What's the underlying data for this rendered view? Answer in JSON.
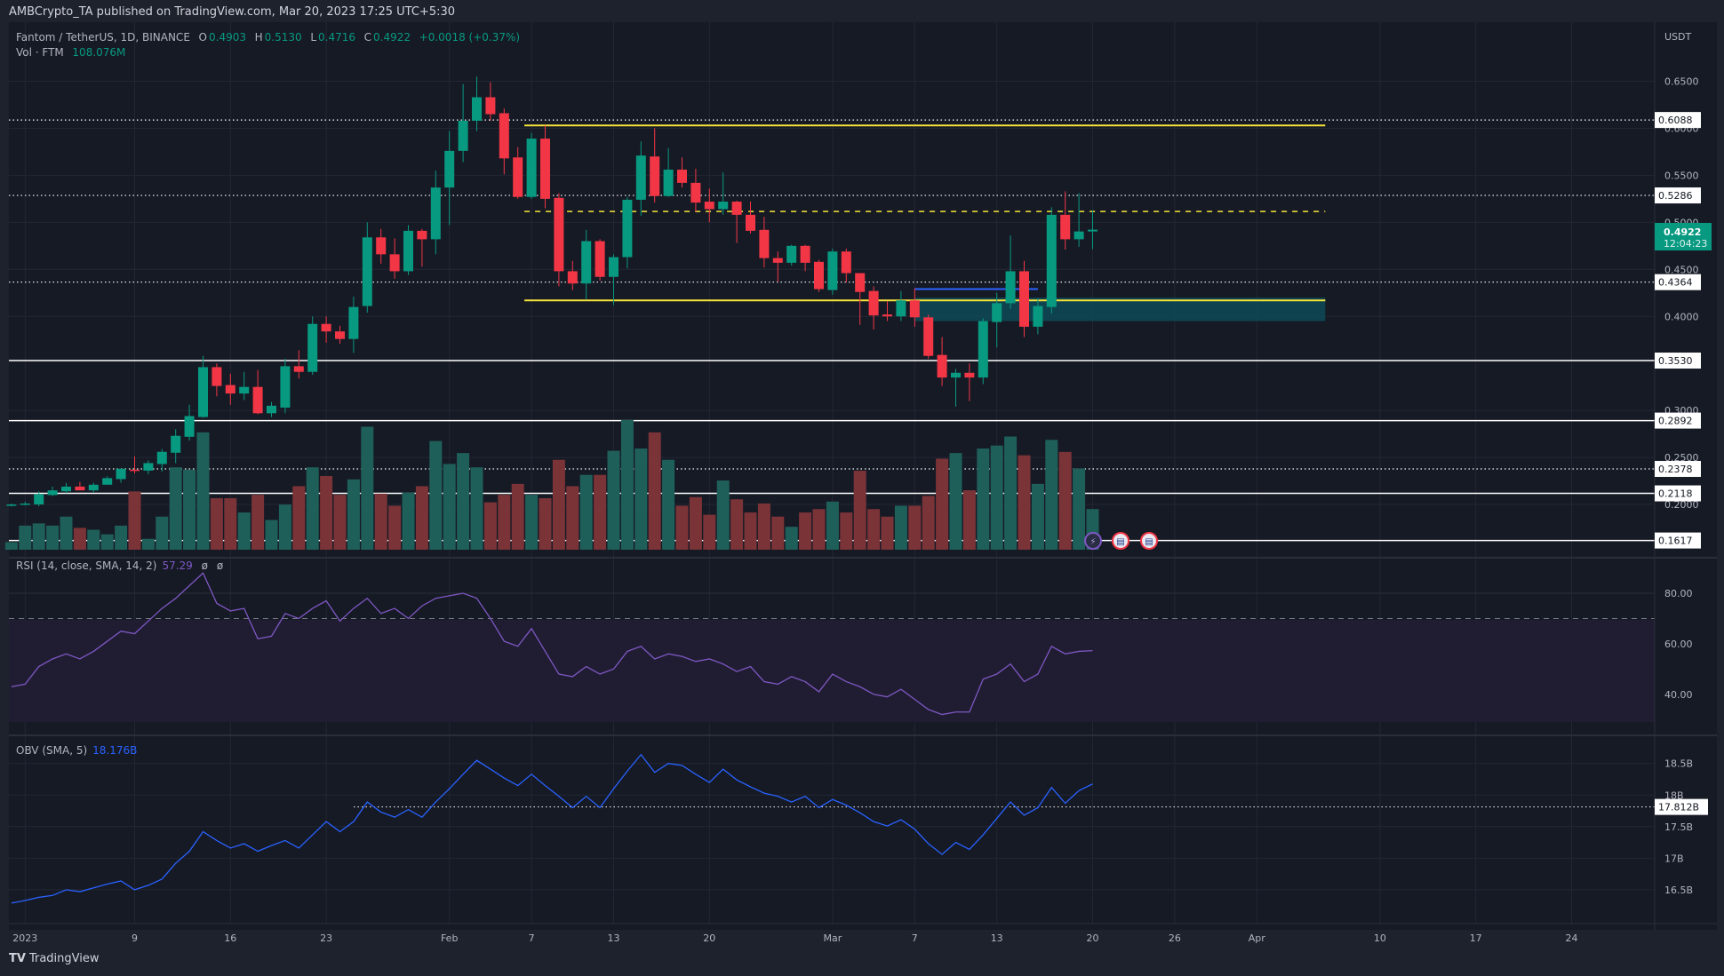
{
  "header": {
    "published": "AMBCrypto_TA published on TradingView.com, Mar 20, 2023 17:25 UTC+5:30"
  },
  "legend": {
    "symbol": "Fantom / TetherUS, 1D, BINANCE",
    "o_label": "O",
    "o": "0.4903",
    "h_label": "H",
    "h": "0.5130",
    "l_label": "L",
    "l": "0.4716",
    "c_label": "C",
    "c": "0.4922",
    "change": "+0.0018 (+0.37%)",
    "vol_label": "Vol · FTM",
    "vol": "108.076M"
  },
  "price_axis": {
    "currency": "USDT",
    "ticks": [
      "0.6500",
      "0.6000",
      "0.5500",
      "0.5000",
      "0.4500",
      "0.4000",
      "0.3000",
      "0.2500",
      "0.2000"
    ],
    "current_price": "0.4922",
    "countdown": "12:04:23"
  },
  "levels": [
    {
      "value": "0.6088",
      "style": "dotted"
    },
    {
      "value": "0.5286",
      "style": "dotted"
    },
    {
      "value": "0.4364",
      "style": "dotted"
    },
    {
      "value": "0.3530",
      "style": "solid"
    },
    {
      "value": "0.2892",
      "style": "solid"
    },
    {
      "value": "0.2378",
      "style": "dotted"
    },
    {
      "value": "0.2118",
      "style": "solid"
    },
    {
      "value": "0.1617",
      "style": "solid"
    }
  ],
  "drawings": {
    "range_high": 0.603,
    "range_mid": 0.5115,
    "range_low": 0.417,
    "range_start_day": 37,
    "range_end_day": 95,
    "zone_top": 0.42,
    "zone_bottom": 0.395,
    "zone_start_day": 65,
    "blue_line": 0.429,
    "blue_line_end_day": 74
  },
  "colors": {
    "up": "#089981",
    "down": "#f23645",
    "vol_up": "#1f5f5a",
    "vol_down": "#7a3337",
    "rsi": "#7e57c2",
    "obv": "#2962ff",
    "yellow": "#f5e33b",
    "zone": "#0d4a56",
    "background": "#161a25"
  },
  "rsi": {
    "label": "RSI (14, close, SMA, 14, 2)",
    "value": "57.29",
    "extra1": "ø",
    "extra2": "ø",
    "ticks": [
      "80.00",
      "60.00",
      "40.00"
    ],
    "upper_band": 70,
    "lower_band": 30,
    "mid": 50
  },
  "obv": {
    "label": "OBV (SMA, 5)",
    "value": "18.176B",
    "ticks": [
      "18.5B",
      "18B",
      "17.5B",
      "17B",
      "16.5B"
    ],
    "marker": "17.812B"
  },
  "time_axis": {
    "labels": [
      {
        "text": "2023",
        "day": 0
      },
      {
        "text": "9",
        "day": 8
      },
      {
        "text": "16",
        "day": 15
      },
      {
        "text": "23",
        "day": 22
      },
      {
        "text": "Feb",
        "day": 31
      },
      {
        "text": "7",
        "day": 37
      },
      {
        "text": "13",
        "day": 43
      },
      {
        "text": "20",
        "day": 50
      },
      {
        "text": "Mar",
        "day": 59
      },
      {
        "text": "7",
        "day": 65
      },
      {
        "text": "13",
        "day": 71
      },
      {
        "text": "20",
        "day": 78
      },
      {
        "text": "26",
        "day": 84
      },
      {
        "text": "Apr",
        "day": 90
      },
      {
        "text": "10",
        "day": 99
      },
      {
        "text": "17",
        "day": 106
      },
      {
        "text": "24",
        "day": 113
      }
    ]
  },
  "events": [
    {
      "icon": "lightning-event-icon"
    },
    {
      "icon": "us-flag-event-icon"
    },
    {
      "icon": "us-flag-event-icon"
    }
  ],
  "footer": {
    "brand": "TradingView"
  },
  "chart_data": {
    "type": "candlestick",
    "first_day": "2022-12-31",
    "ohlc": [
      [
        0.199,
        0.201,
        0.198,
        0.2
      ],
      [
        0.2,
        0.203,
        0.199,
        0.201
      ],
      [
        0.2,
        0.214,
        0.198,
        0.211
      ],
      [
        0.21,
        0.219,
        0.209,
        0.215
      ],
      [
        0.214,
        0.223,
        0.212,
        0.219
      ],
      [
        0.219,
        0.224,
        0.215,
        0.215
      ],
      [
        0.215,
        0.223,
        0.213,
        0.221
      ],
      [
        0.221,
        0.23,
        0.221,
        0.228
      ],
      [
        0.227,
        0.238,
        0.223,
        0.238
      ],
      [
        0.237,
        0.251,
        0.233,
        0.236
      ],
      [
        0.236,
        0.247,
        0.232,
        0.244
      ],
      [
        0.243,
        0.259,
        0.235,
        0.256
      ],
      [
        0.255,
        0.28,
        0.244,
        0.273
      ],
      [
        0.272,
        0.306,
        0.268,
        0.294
      ],
      [
        0.293,
        0.358,
        0.292,
        0.346
      ],
      [
        0.346,
        0.35,
        0.315,
        0.326
      ],
      [
        0.327,
        0.339,
        0.306,
        0.318
      ],
      [
        0.318,
        0.341,
        0.311,
        0.325
      ],
      [
        0.325,
        0.343,
        0.296,
        0.297
      ],
      [
        0.297,
        0.309,
        0.293,
        0.305
      ],
      [
        0.303,
        0.355,
        0.297,
        0.347
      ],
      [
        0.347,
        0.364,
        0.334,
        0.341
      ],
      [
        0.341,
        0.4,
        0.338,
        0.392
      ],
      [
        0.392,
        0.4,
        0.372,
        0.384
      ],
      [
        0.384,
        0.39,
        0.371,
        0.376
      ],
      [
        0.376,
        0.421,
        0.361,
        0.41
      ],
      [
        0.411,
        0.5,
        0.404,
        0.484
      ],
      [
        0.484,
        0.493,
        0.456,
        0.466
      ],
      [
        0.466,
        0.483,
        0.44,
        0.448
      ],
      [
        0.448,
        0.497,
        0.444,
        0.491
      ],
      [
        0.491,
        0.493,
        0.453,
        0.482
      ],
      [
        0.482,
        0.555,
        0.466,
        0.537
      ],
      [
        0.537,
        0.597,
        0.497,
        0.576
      ],
      [
        0.576,
        0.647,
        0.564,
        0.608
      ],
      [
        0.608,
        0.655,
        0.597,
        0.633
      ],
      [
        0.633,
        0.649,
        0.608,
        0.615
      ],
      [
        0.616,
        0.621,
        0.551,
        0.568
      ],
      [
        0.569,
        0.58,
        0.525,
        0.527
      ],
      [
        0.527,
        0.595,
        0.525,
        0.589
      ],
      [
        0.589,
        0.603,
        0.515,
        0.525
      ],
      [
        0.526,
        0.531,
        0.432,
        0.448
      ],
      [
        0.448,
        0.459,
        0.428,
        0.435
      ],
      [
        0.435,
        0.492,
        0.418,
        0.48
      ],
      [
        0.48,
        0.482,
        0.438,
        0.442
      ],
      [
        0.442,
        0.466,
        0.412,
        0.463
      ],
      [
        0.463,
        0.527,
        0.451,
        0.524
      ],
      [
        0.524,
        0.586,
        0.507,
        0.571
      ],
      [
        0.57,
        0.6,
        0.521,
        0.528
      ],
      [
        0.528,
        0.579,
        0.527,
        0.556
      ],
      [
        0.556,
        0.569,
        0.537,
        0.542
      ],
      [
        0.542,
        0.557,
        0.511,
        0.521
      ],
      [
        0.522,
        0.536,
        0.5,
        0.514
      ],
      [
        0.514,
        0.553,
        0.508,
        0.522
      ],
      [
        0.522,
        0.523,
        0.478,
        0.508
      ],
      [
        0.508,
        0.522,
        0.488,
        0.491
      ],
      [
        0.492,
        0.506,
        0.452,
        0.462
      ],
      [
        0.462,
        0.469,
        0.437,
        0.457
      ],
      [
        0.457,
        0.476,
        0.454,
        0.475
      ],
      [
        0.475,
        0.476,
        0.448,
        0.457
      ],
      [
        0.458,
        0.46,
        0.426,
        0.429
      ],
      [
        0.428,
        0.472,
        0.423,
        0.469
      ],
      [
        0.469,
        0.472,
        0.436,
        0.446
      ],
      [
        0.446,
        0.446,
        0.391,
        0.426
      ],
      [
        0.427,
        0.432,
        0.386,
        0.401
      ],
      [
        0.402,
        0.416,
        0.395,
        0.4
      ],
      [
        0.4,
        0.427,
        0.395,
        0.417
      ],
      [
        0.417,
        0.43,
        0.389,
        0.399
      ],
      [
        0.399,
        0.402,
        0.355,
        0.358
      ],
      [
        0.359,
        0.378,
        0.326,
        0.335
      ],
      [
        0.335,
        0.344,
        0.304,
        0.34
      ],
      [
        0.34,
        0.35,
        0.31,
        0.335
      ],
      [
        0.335,
        0.398,
        0.328,
        0.395
      ],
      [
        0.394,
        0.425,
        0.367,
        0.414
      ],
      [
        0.414,
        0.486,
        0.408,
        0.448
      ],
      [
        0.448,
        0.459,
        0.378,
        0.389
      ],
      [
        0.389,
        0.419,
        0.381,
        0.411
      ],
      [
        0.41,
        0.516,
        0.403,
        0.508
      ],
      [
        0.508,
        0.533,
        0.471,
        0.482
      ],
      [
        0.482,
        0.531,
        0.474,
        0.4903
      ],
      [
        0.4903,
        0.513,
        0.4716,
        0.4922
      ]
    ],
    "volume_millions": [
      20,
      64,
      70,
      64,
      88,
      58,
      53,
      41,
      64,
      155,
      29,
      88,
      219,
      213,
      312,
      137,
      137,
      99,
      146,
      79,
      120,
      169,
      219,
      196,
      146,
      187,
      327,
      149,
      117,
      152,
      169,
      289,
      228,
      257,
      219,
      126,
      146,
      175,
      146,
      137,
      239,
      169,
      199,
      199,
      263,
      345,
      269,
      312,
      239,
      117,
      140,
      93,
      184,
      134,
      99,
      123,
      88,
      61,
      99,
      108,
      128,
      99,
      210,
      108,
      88,
      117,
      117,
      143,
      242,
      257,
      158,
      269,
      277,
      301,
      251,
      175,
      292,
      260,
      216,
      108.076
    ],
    "rsi_values": [
      43,
      44,
      51,
      54,
      56,
      54,
      57,
      61,
      65,
      64,
      69,
      74,
      78,
      83,
      88,
      76,
      73,
      74,
      62,
      63,
      72,
      70,
      74,
      77,
      69,
      74,
      78,
      72,
      74,
      70,
      75,
      78,
      79,
      80,
      78,
      70,
      61,
      59,
      66,
      57,
      48,
      47,
      51,
      48,
      50,
      57,
      59,
      54,
      56,
      55,
      53,
      54,
      52,
      49,
      51,
      45,
      44,
      47,
      45,
      41,
      48,
      45,
      43,
      40,
      39,
      42,
      38,
      34,
      32,
      33,
      33,
      46,
      48,
      52,
      45,
      48,
      59,
      56,
      57,
      57.29
    ],
    "obv_billions": [
      16.29,
      16.33,
      16.38,
      16.41,
      16.5,
      16.47,
      16.53,
      16.59,
      16.64,
      16.5,
      16.57,
      16.67,
      16.92,
      17.11,
      17.42,
      17.28,
      17.16,
      17.23,
      17.11,
      17.2,
      17.28,
      17.16,
      17.37,
      17.58,
      17.42,
      17.58,
      17.89,
      17.73,
      17.65,
      17.77,
      17.65,
      17.89,
      18.1,
      18.33,
      18.55,
      18.41,
      18.27,
      18.15,
      18.33,
      18.15,
      17.98,
      17.8,
      17.98,
      17.8,
      18.1,
      18.38,
      18.64,
      18.36,
      18.5,
      18.47,
      18.33,
      18.2,
      18.41,
      18.24,
      18.13,
      18.03,
      17.98,
      17.89,
      17.98,
      17.8,
      17.93,
      17.84,
      17.72,
      17.58,
      17.51,
      17.61,
      17.46,
      17.23,
      17.06,
      17.25,
      17.14,
      17.37,
      17.63,
      17.89,
      17.68,
      17.8,
      18.12,
      17.87,
      18.07,
      18.176
    ],
    "price_range": [
      0.16,
      0.66
    ],
    "rsi_range": [
      25,
      95
    ],
    "obv_range": [
      16.2,
      18.8
    ],
    "grid": true
  }
}
